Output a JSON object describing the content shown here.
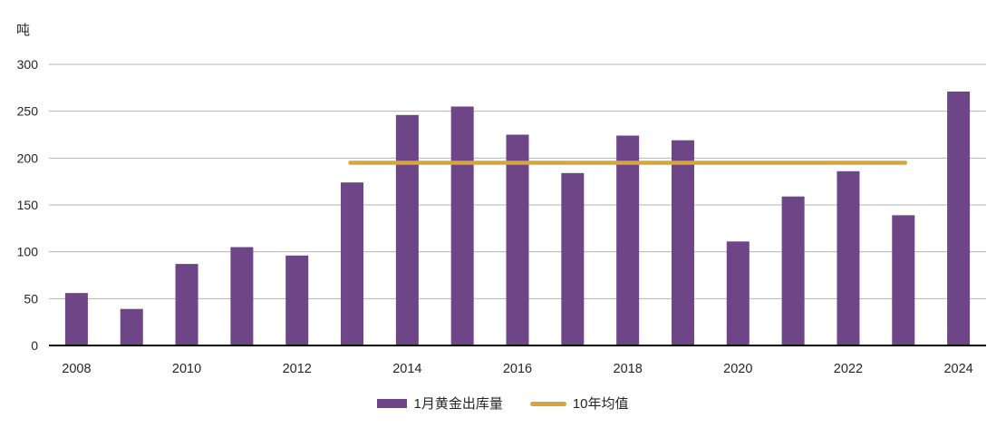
{
  "chart": {
    "unit_label": "吨",
    "legend": [
      {
        "label": "1月黄金出库量",
        "marker": "bar-swatch-icon",
        "color": "#6E4587"
      },
      {
        "label": "10年均值",
        "marker": "line-swatch-icon",
        "color": "#D6A53C"
      }
    ]
  },
  "chart_data": {
    "type": "bar",
    "title": "",
    "xlabel": "",
    "ylabel": "吨",
    "categories": [
      "2008",
      "2009",
      "2010",
      "2011",
      "2012",
      "2013",
      "2014",
      "2015",
      "2016",
      "2017",
      "2018",
      "2019",
      "2020",
      "2021",
      "2022",
      "2023",
      "2024"
    ],
    "series": [
      {
        "name": "1月黄金出库量",
        "type": "bar",
        "color": "#6E4587",
        "values": [
          56,
          39,
          87,
          105,
          96,
          174,
          246,
          255,
          225,
          184,
          224,
          219,
          111,
          159,
          186,
          139,
          271
        ]
      },
      {
        "name": "10年均值",
        "type": "line",
        "color": "#D6A53C",
        "value": 195,
        "span": [
          "2013",
          "2023"
        ]
      }
    ],
    "ylim": [
      0,
      300
    ],
    "ytick_interval": 50,
    "ytick_labels": [
      "0",
      "50",
      "100",
      "150",
      "200",
      "250",
      "300"
    ],
    "xtick_labels": [
      "2008",
      "2010",
      "2012",
      "2014",
      "2016",
      "2018",
      "2020",
      "2022",
      "2024"
    ],
    "xtick_every": 2,
    "grid": true,
    "grid_color": "#B3B3B3",
    "axis_color": "#000000",
    "tick_label_color": "#262626",
    "legend_position": "bottom"
  }
}
